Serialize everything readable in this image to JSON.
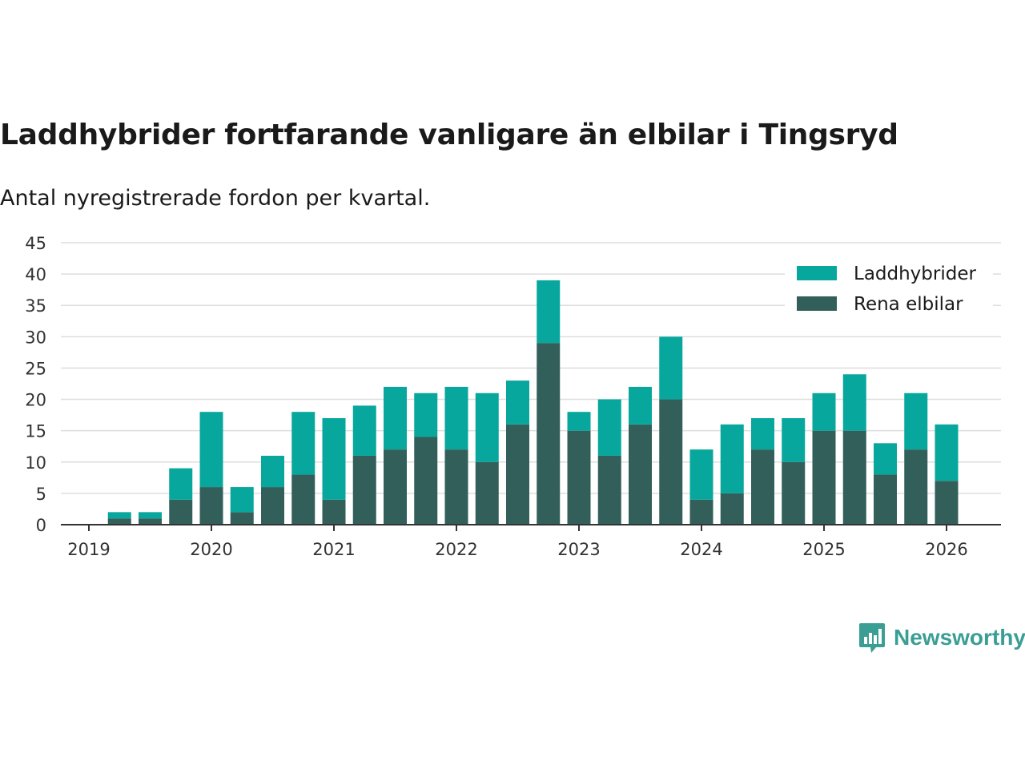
{
  "header": {
    "title": "Laddhybrider fortfarande vanligare än elbilar i Tingsryd",
    "subtitle": "Antal nyregistrerade fordon per kvartal."
  },
  "brand": {
    "name": "Newsworthy",
    "color": "#3a9e94"
  },
  "chart_data": {
    "type": "bar",
    "stacked": true,
    "title": "Laddhybrider fortfarande vanligare än elbilar i Tingsryd",
    "subtitle": "Antal nyregistrerade fordon per kvartal.",
    "xlabel": "",
    "ylabel": "",
    "ylim": [
      0,
      45
    ],
    "yticks": [
      0,
      5,
      10,
      15,
      20,
      25,
      30,
      35,
      40,
      45
    ],
    "grid": true,
    "legend_position": "top-right",
    "categories": [
      "2019 Q2",
      "2019 Q3",
      "2019 Q4",
      "2020 Q1",
      "2020 Q2",
      "2020 Q3",
      "2020 Q4",
      "2021 Q1",
      "2021 Q2",
      "2021 Q3",
      "2021 Q4",
      "2022 Q1",
      "2022 Q2",
      "2022 Q3",
      "2022 Q4",
      "2023 Q1",
      "2023 Q2",
      "2023 Q3",
      "2023 Q4",
      "2024 Q1",
      "2024 Q2",
      "2024 Q3",
      "2024 Q4",
      "2025 Q1",
      "2025 Q2",
      "2025 Q3",
      "2025 Q4",
      "2026 Q1"
    ],
    "year_labels": [
      "2019",
      "2020",
      "2021",
      "2022",
      "2023",
      "2024",
      "2025",
      "2026"
    ],
    "series": [
      {
        "name": "Rena elbilar",
        "color": "#335f5a",
        "values": [
          1,
          1,
          4,
          6,
          2,
          6,
          8,
          4,
          11,
          12,
          14,
          12,
          10,
          16,
          29,
          15,
          11,
          16,
          20,
          4,
          5,
          12,
          10,
          15,
          15,
          8,
          12,
          7
        ]
      },
      {
        "name": "Laddhybrider",
        "color": "#07a79d",
        "values": [
          1,
          1,
          5,
          12,
          4,
          5,
          10,
          13,
          8,
          10,
          7,
          10,
          11,
          7,
          10,
          3,
          9,
          6,
          10,
          8,
          11,
          5,
          7,
          6,
          9,
          5,
          9,
          9
        ]
      }
    ],
    "legend": [
      "Laddhybrider",
      "Rena elbilar"
    ]
  }
}
